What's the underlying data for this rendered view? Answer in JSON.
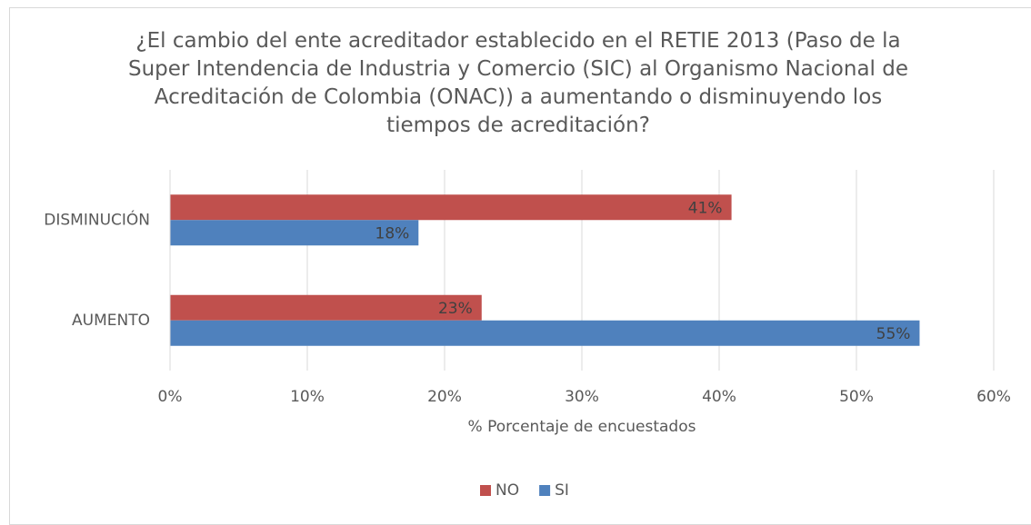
{
  "chart_data": {
    "type": "hbar",
    "title": "¿El cambio del ente acreditador establecido en el RETIE 2013 (Paso de la Super Intendencia de Industria y Comercio (SIC) al Organismo Nacional de Acreditación de Colombia (ONAC)) a aumentando o disminuyendo los tiempos de acreditación?",
    "xlabel": "% Porcentaje de encuestados",
    "categories": [
      "DISMINUCIÓN",
      "AUMENTO"
    ],
    "series": [
      {
        "name": "NO",
        "color": "#c0504d",
        "values": [
          40.9,
          22.7
        ],
        "value_labels": [
          "41%",
          "23%"
        ]
      },
      {
        "name": "SI",
        "color": "#4f81bd",
        "values": [
          18.1,
          54.6
        ],
        "value_labels": [
          "18%",
          "55%"
        ]
      }
    ],
    "xlim": [
      0,
      60
    ],
    "xticks": [
      {
        "value": 0,
        "label": "0%"
      },
      {
        "value": 10,
        "label": "10%"
      },
      {
        "value": 20,
        "label": "20%"
      },
      {
        "value": 30,
        "label": "30%"
      },
      {
        "value": 40,
        "label": "40%"
      },
      {
        "value": 50,
        "label": "50%"
      },
      {
        "value": 60,
        "label": "60%"
      }
    ],
    "grid": true,
    "legend": "bottom"
  }
}
